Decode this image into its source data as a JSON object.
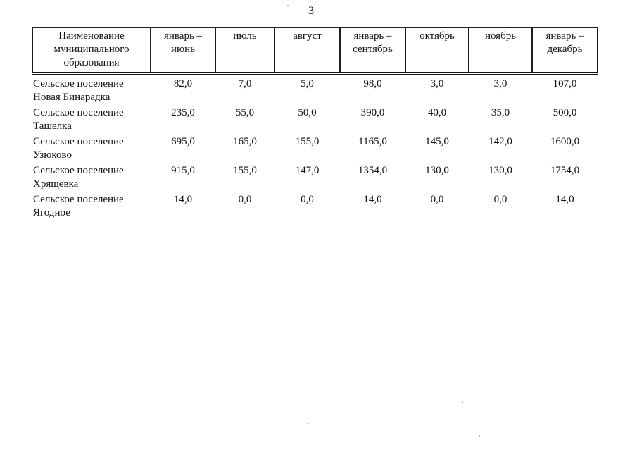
{
  "page": {
    "number": "3"
  },
  "table": {
    "columns": [
      "Наименование муниципального образования",
      "январь – июнь",
      "июль",
      "август",
      "январь – сентябрь",
      "октябрь",
      "ноябрь",
      "январь – декабрь"
    ],
    "rows": [
      {
        "name": "Сельское поселение Новая Бинарадка",
        "values": [
          "82,0",
          "7,0",
          "5,0",
          "98,0",
          "3,0",
          "3,0",
          "107,0"
        ]
      },
      {
        "name": "Сельское поселение Ташелка",
        "values": [
          "235,0",
          "55,0",
          "50,0",
          "390,0",
          "40,0",
          "35,0",
          "500,0"
        ]
      },
      {
        "name": "Сельское поселение Узюково",
        "values": [
          "695,0",
          "165,0",
          "155,0",
          "1165,0",
          "145,0",
          "142,0",
          "1600,0"
        ]
      },
      {
        "name": "Сельское поселение Хрящевка",
        "values": [
          "915,0",
          "155,0",
          "147,0",
          "1354,0",
          "130,0",
          "130,0",
          "1754,0"
        ]
      },
      {
        "name": "Сельское поселение Ягодное",
        "values": [
          "14,0",
          "0,0",
          "0,0",
          "14,0",
          "0,0",
          "0,0",
          "14,0"
        ]
      }
    ]
  }
}
